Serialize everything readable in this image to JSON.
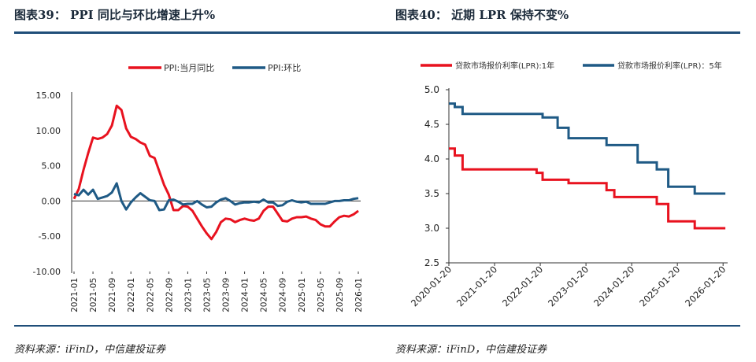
{
  "left": {
    "title": "图表39：   PPI 同比与环比增速上升%",
    "source": "资料来源：iFinD，中信建投证券"
  },
  "right": {
    "title": "图表40：   近期 LPR 保持不变%",
    "source": "资料来源：iFinD，中信建投证券"
  },
  "colors": {
    "red": "#e8121f",
    "blue": "#1f5a85",
    "rule": "#1f4e79"
  },
  "chart_data": [
    {
      "type": "line",
      "title": "",
      "ylim": [
        -10,
        15
      ],
      "yticks": [
        "15.00",
        "10.00",
        "5.00",
        "0.00",
        "-5.00",
        "-10.00"
      ],
      "ytick_values": [
        15,
        10,
        5,
        0,
        -5,
        -10
      ],
      "xticks": [
        "2021-01",
        "2021-05",
        "2021-09",
        "2022-01",
        "2022-05",
        "2022-09",
        "2023-01",
        "2023-05",
        "2023-09",
        "2024-01",
        "2024-05",
        "2024-09",
        "2025-01",
        "2025-05",
        "2025-09",
        "2026-01"
      ],
      "legend_position": "top",
      "x": [
        "2021-01",
        "2021-02",
        "2021-03",
        "2021-04",
        "2021-05",
        "2021-06",
        "2021-07",
        "2021-08",
        "2021-09",
        "2021-10",
        "2021-11",
        "2021-12",
        "2022-01",
        "2022-02",
        "2022-03",
        "2022-04",
        "2022-05",
        "2022-06",
        "2022-07",
        "2022-08",
        "2022-09",
        "2022-10",
        "2022-11",
        "2022-12",
        "2023-01",
        "2023-02",
        "2023-03",
        "2023-04",
        "2023-05",
        "2023-06",
        "2023-07",
        "2023-08",
        "2023-09",
        "2023-10",
        "2023-11",
        "2023-12",
        "2024-01",
        "2024-02",
        "2024-03",
        "2024-04",
        "2024-05",
        "2024-06",
        "2024-07",
        "2024-08",
        "2024-09",
        "2024-10",
        "2024-11",
        "2024-12",
        "2025-01",
        "2025-02",
        "2025-03",
        "2025-04",
        "2025-05",
        "2025-06",
        "2025-07",
        "2025-08",
        "2025-09",
        "2025-10",
        "2025-11",
        "2025-12",
        "2026-01"
      ],
      "series": [
        {
          "name": "PPI:当月同比",
          "color": "#e8121f",
          "values": [
            0.3,
            1.7,
            4.4,
            6.8,
            9.0,
            8.8,
            9.0,
            9.5,
            10.7,
            13.5,
            12.9,
            10.3,
            9.1,
            8.8,
            8.3,
            8.0,
            6.4,
            6.1,
            4.2,
            2.3,
            0.9,
            -1.3,
            -1.3,
            -0.7,
            -0.8,
            -1.4,
            -2.5,
            -3.6,
            -4.6,
            -5.4,
            -4.4,
            -3.0,
            -2.5,
            -2.6,
            -3.0,
            -2.7,
            -2.5,
            -2.7,
            -2.8,
            -2.5,
            -1.4,
            -0.8,
            -0.8,
            -1.8,
            -2.8,
            -2.9,
            -2.5,
            -2.3,
            -2.3,
            -2.2,
            -2.5,
            -2.7,
            -3.3,
            -3.6,
            -3.6,
            -2.9,
            -2.3,
            -2.1,
            -2.2,
            -1.9,
            -1.4
          ]
        },
        {
          "name": "PPI:环比",
          "color": "#1f5a85",
          "values": [
            1.0,
            0.8,
            1.6,
            0.9,
            1.6,
            0.3,
            0.5,
            0.7,
            1.2,
            2.5,
            0.0,
            -1.2,
            -0.2,
            0.5,
            1.1,
            0.6,
            0.1,
            0.0,
            -1.3,
            -1.2,
            0.1,
            0.2,
            -0.1,
            -0.5,
            -0.4,
            -0.4,
            0.0,
            -0.5,
            -0.9,
            -0.8,
            -0.2,
            0.2,
            0.4,
            0.0,
            -0.5,
            -0.3,
            -0.2,
            -0.2,
            -0.1,
            -0.2,
            0.2,
            -0.2,
            -0.2,
            -0.7,
            -0.6,
            -0.1,
            0.1,
            -0.1,
            -0.2,
            -0.1,
            -0.4,
            -0.4,
            -0.4,
            -0.4,
            -0.2,
            0.0,
            0.0,
            0.1,
            0.1,
            0.3,
            0.4
          ]
        }
      ]
    },
    {
      "type": "line",
      "title": "",
      "ylim": [
        2.5,
        5.0
      ],
      "yticks": [
        "5.0",
        "4.5",
        "4.0",
        "3.5",
        "3.0",
        "2.5"
      ],
      "ytick_values": [
        5.0,
        4.5,
        4.0,
        3.5,
        3.0,
        2.5
      ],
      "xticks": [
        "2020-01-20",
        "2021-01-20",
        "2022-01-20",
        "2023-01-20",
        "2024-01-20",
        "2025-01-20",
        "2026-01-20"
      ],
      "xtick_years": [
        2020,
        2021,
        2022,
        2023,
        2024,
        2025,
        2026
      ],
      "xlim_years": [
        2020,
        2026.1
      ],
      "legend_position": "top",
      "series": [
        {
          "name": "贷款市场报价利率(LPR):1年",
          "color": "#e8121f",
          "step": true,
          "points": [
            [
              2020.0,
              4.15
            ],
            [
              2020.13,
              4.05
            ],
            [
              2020.3,
              3.85
            ],
            [
              2021.92,
              3.8
            ],
            [
              2022.05,
              3.7
            ],
            [
              2022.62,
              3.65
            ],
            [
              2023.45,
              3.55
            ],
            [
              2023.62,
              3.45
            ],
            [
              2024.55,
              3.35
            ],
            [
              2024.8,
              3.1
            ],
            [
              2025.38,
              3.0
            ],
            [
              2026.05,
              3.0
            ]
          ]
        },
        {
          "name": "贷款市场报价利率(LPR)：5年",
          "color": "#1f5a85",
          "step": true,
          "points": [
            [
              2020.0,
              4.8
            ],
            [
              2020.13,
              4.75
            ],
            [
              2020.3,
              4.65
            ],
            [
              2022.05,
              4.6
            ],
            [
              2022.38,
              4.45
            ],
            [
              2022.62,
              4.3
            ],
            [
              2023.45,
              4.2
            ],
            [
              2024.13,
              3.95
            ],
            [
              2024.55,
              3.85
            ],
            [
              2024.8,
              3.6
            ],
            [
              2025.38,
              3.5
            ],
            [
              2026.05,
              3.5
            ]
          ]
        }
      ]
    }
  ]
}
